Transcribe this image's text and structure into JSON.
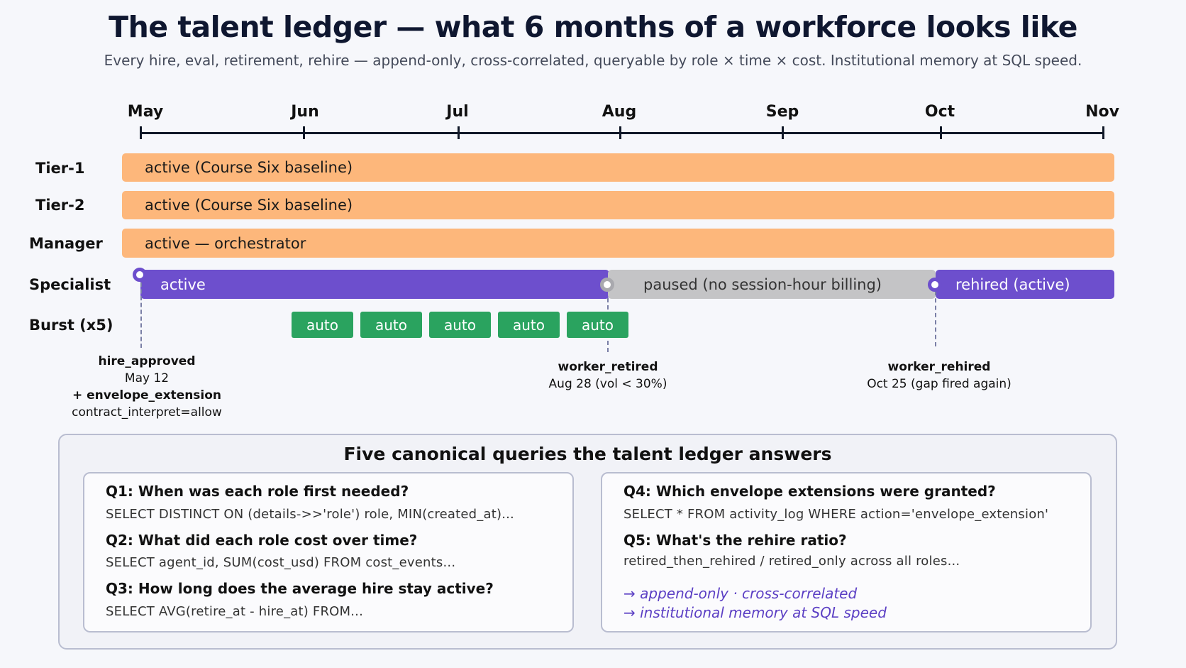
{
  "title": "The talent ledger — what 6 months of a workforce looks like",
  "subtitle": "Every hire, eval, retirement, rehire — append-only, cross-correlated, queryable by role × time × cost. Institutional memory at SQL speed.",
  "months": [
    "May",
    "Jun",
    "Jul",
    "Aug",
    "Sep",
    "Oct",
    "Nov"
  ],
  "rows": {
    "tier1": {
      "label": "Tier-1",
      "bar": "active (Course Six baseline)"
    },
    "tier2": {
      "label": "Tier-2",
      "bar": "active (Course Six baseline)"
    },
    "manager": {
      "label": "Manager",
      "bar": "active — orchestrator"
    },
    "specialist": {
      "label": "Specialist",
      "active": "active",
      "paused": "paused (no session-hour billing)",
      "rehired": "rehired (active)"
    },
    "burst": {
      "label": "Burst (x5)",
      "items": [
        "auto",
        "auto",
        "auto",
        "auto",
        "auto"
      ]
    }
  },
  "events": {
    "hire": {
      "name": "hire_approved",
      "date": "May 12",
      "extra": "+ envelope_extension",
      "detail": "contract_interpret=allow"
    },
    "retired": {
      "name": "worker_retired",
      "detail": "Aug 28 (vol < 30%)"
    },
    "rehired": {
      "name": "worker_rehired",
      "detail": "Oct 25 (gap fired again)"
    }
  },
  "queries": {
    "title": "Five canonical queries the talent ledger answers",
    "q1": {
      "q": "Q1: When was each role first needed?",
      "sql": "SELECT DISTINCT ON (details->>'role') role, MIN(created_at)..."
    },
    "q2": {
      "q": "Q2: What did each role cost over time?",
      "sql": "SELECT agent_id, SUM(cost_usd) FROM cost_events..."
    },
    "q3": {
      "q": "Q3: How long does the average hire stay active?",
      "sql": "SELECT AVG(retire_at - hire_at) FROM..."
    },
    "q4": {
      "q": "Q4: Which envelope extensions were granted?",
      "sql": "SELECT * FROM activity_log WHERE action='envelope_extension'"
    },
    "q5": {
      "q": "Q5: What's the rehire ratio?",
      "sql": "retired_then_rehired / retired_only across all roles..."
    },
    "notes": [
      "→ append-only · cross-correlated",
      "→ institutional memory at SQL speed"
    ]
  },
  "colors": {
    "orange": "#fdb77b",
    "purple": "#6d4fcd",
    "gray": "#c4c4c6",
    "green": "#2aa35f"
  }
}
